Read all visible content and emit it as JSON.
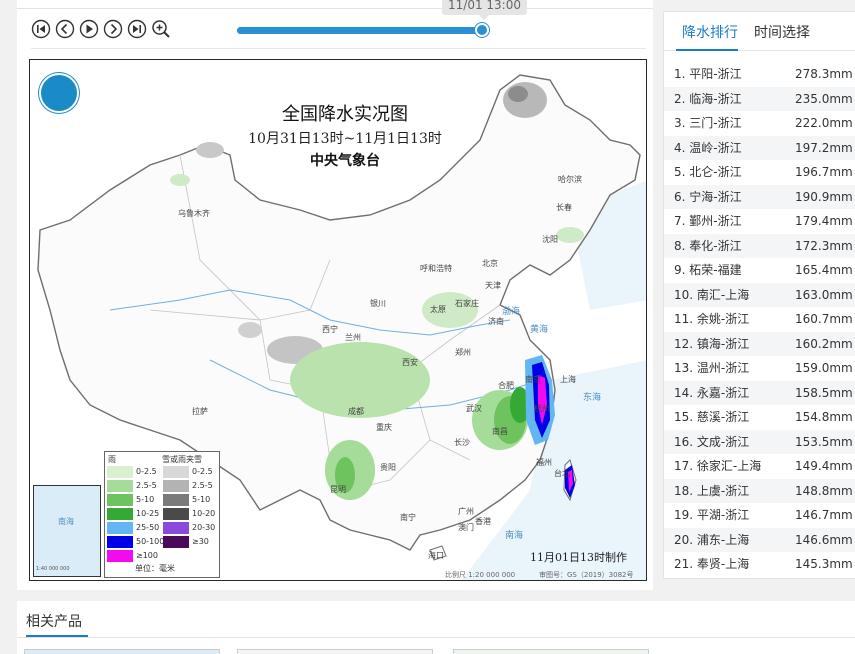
{
  "player": {
    "time_tooltip": "11/01 13:00",
    "progress": 1.0,
    "buttons": [
      "first-frame",
      "previous-frame",
      "play",
      "next-frame",
      "last-frame",
      "zoom-in"
    ]
  },
  "map": {
    "title": "全国降水实况图",
    "subtitle": "10月31日13时~11月1日13时",
    "agency": "中央气象台",
    "made_time": "11月01日13时制作",
    "scale": "比例尺 1:20 000 000",
    "gs": "审图号：GS（2019）3082号",
    "inset_label": "南海",
    "inset_scale": "1:40 000 000",
    "cities": [
      "乌鲁木齐",
      "哈尔滨",
      "长春",
      "沈阳",
      "北京",
      "天津",
      "石家庄",
      "太原",
      "济南",
      "呼和浩特",
      "银川",
      "西宁",
      "兰州",
      "西安",
      "郑州",
      "合肥",
      "南京",
      "上海",
      "杭州",
      "武汉",
      "成都",
      "重庆",
      "长沙",
      "南昌",
      "福州",
      "台北",
      "贵阳",
      "昆明",
      "南宁",
      "广州",
      "香港",
      "澳门",
      "海口",
      "拉萨"
    ],
    "seas": [
      "渤海",
      "黄海",
      "东海",
      "南海"
    ],
    "legend": {
      "rain_header": "雨",
      "snow_header": "雪或雨夹雪",
      "unit": "单位：毫米",
      "rain": [
        {
          "label": "0-2.5",
          "color": "#d8f0d0"
        },
        {
          "label": "2.5-5",
          "color": "#a6dc9a"
        },
        {
          "label": "5-10",
          "color": "#6fc35e"
        },
        {
          "label": "10-25",
          "color": "#34a935"
        },
        {
          "label": "25-50",
          "color": "#62b7f2"
        },
        {
          "label": "50-100",
          "color": "#0000e6"
        },
        {
          "label": "≥100",
          "color": "#f10bee"
        }
      ],
      "snow": [
        {
          "label": "0-2.5",
          "color": "#d8d8d8"
        },
        {
          "label": "2.5-5",
          "color": "#b3b3b3"
        },
        {
          "label": "5-10",
          "color": "#7a7a7a"
        },
        {
          "label": "10-20",
          "color": "#4a4a4a"
        },
        {
          "label": "20-30",
          "color": "#8a4bdc"
        },
        {
          "label": "≥30",
          "color": "#4a0a5a"
        }
      ]
    }
  },
  "ranking": {
    "tabs": [
      "降水排行",
      "时间选择"
    ],
    "active_tab": 0,
    "rows": [
      {
        "name": "1. 平阳-浙江",
        "value": "278.3mm"
      },
      {
        "name": "2. 临海-浙江",
        "value": "235.0mm"
      },
      {
        "name": "3. 三门-浙江",
        "value": "222.0mm"
      },
      {
        "name": "4. 温岭-浙江",
        "value": "197.2mm"
      },
      {
        "name": "5. 北仑-浙江",
        "value": "196.7mm"
      },
      {
        "name": "6. 宁海-浙江",
        "value": "190.9mm"
      },
      {
        "name": "7. 鄞州-浙江",
        "value": "179.4mm"
      },
      {
        "name": "8. 奉化-浙江",
        "value": "172.3mm"
      },
      {
        "name": "9. 柘荣-福建",
        "value": "165.4mm"
      },
      {
        "name": "10. 南汇-上海",
        "value": "163.0mm"
      },
      {
        "name": "11. 余姚-浙江",
        "value": "160.7mm"
      },
      {
        "name": "12. 镇海-浙江",
        "value": "160.2mm"
      },
      {
        "name": "13. 温州-浙江",
        "value": "159.0mm"
      },
      {
        "name": "14. 永嘉-浙江",
        "value": "158.5mm"
      },
      {
        "name": "15. 慈溪-浙江",
        "value": "154.8mm"
      },
      {
        "name": "16. 文成-浙江",
        "value": "153.5mm"
      },
      {
        "name": "17. 徐家汇-上海",
        "value": "149.4mm"
      },
      {
        "name": "18. 上虞-浙江",
        "value": "148.8mm"
      },
      {
        "name": "19. 平湖-浙江",
        "value": "146.7mm"
      },
      {
        "name": "20. 浦东-上海",
        "value": "146.6mm"
      },
      {
        "name": "21. 奉贤-上海",
        "value": "145.3mm"
      }
    ]
  },
  "related": {
    "title": "相关产品"
  }
}
